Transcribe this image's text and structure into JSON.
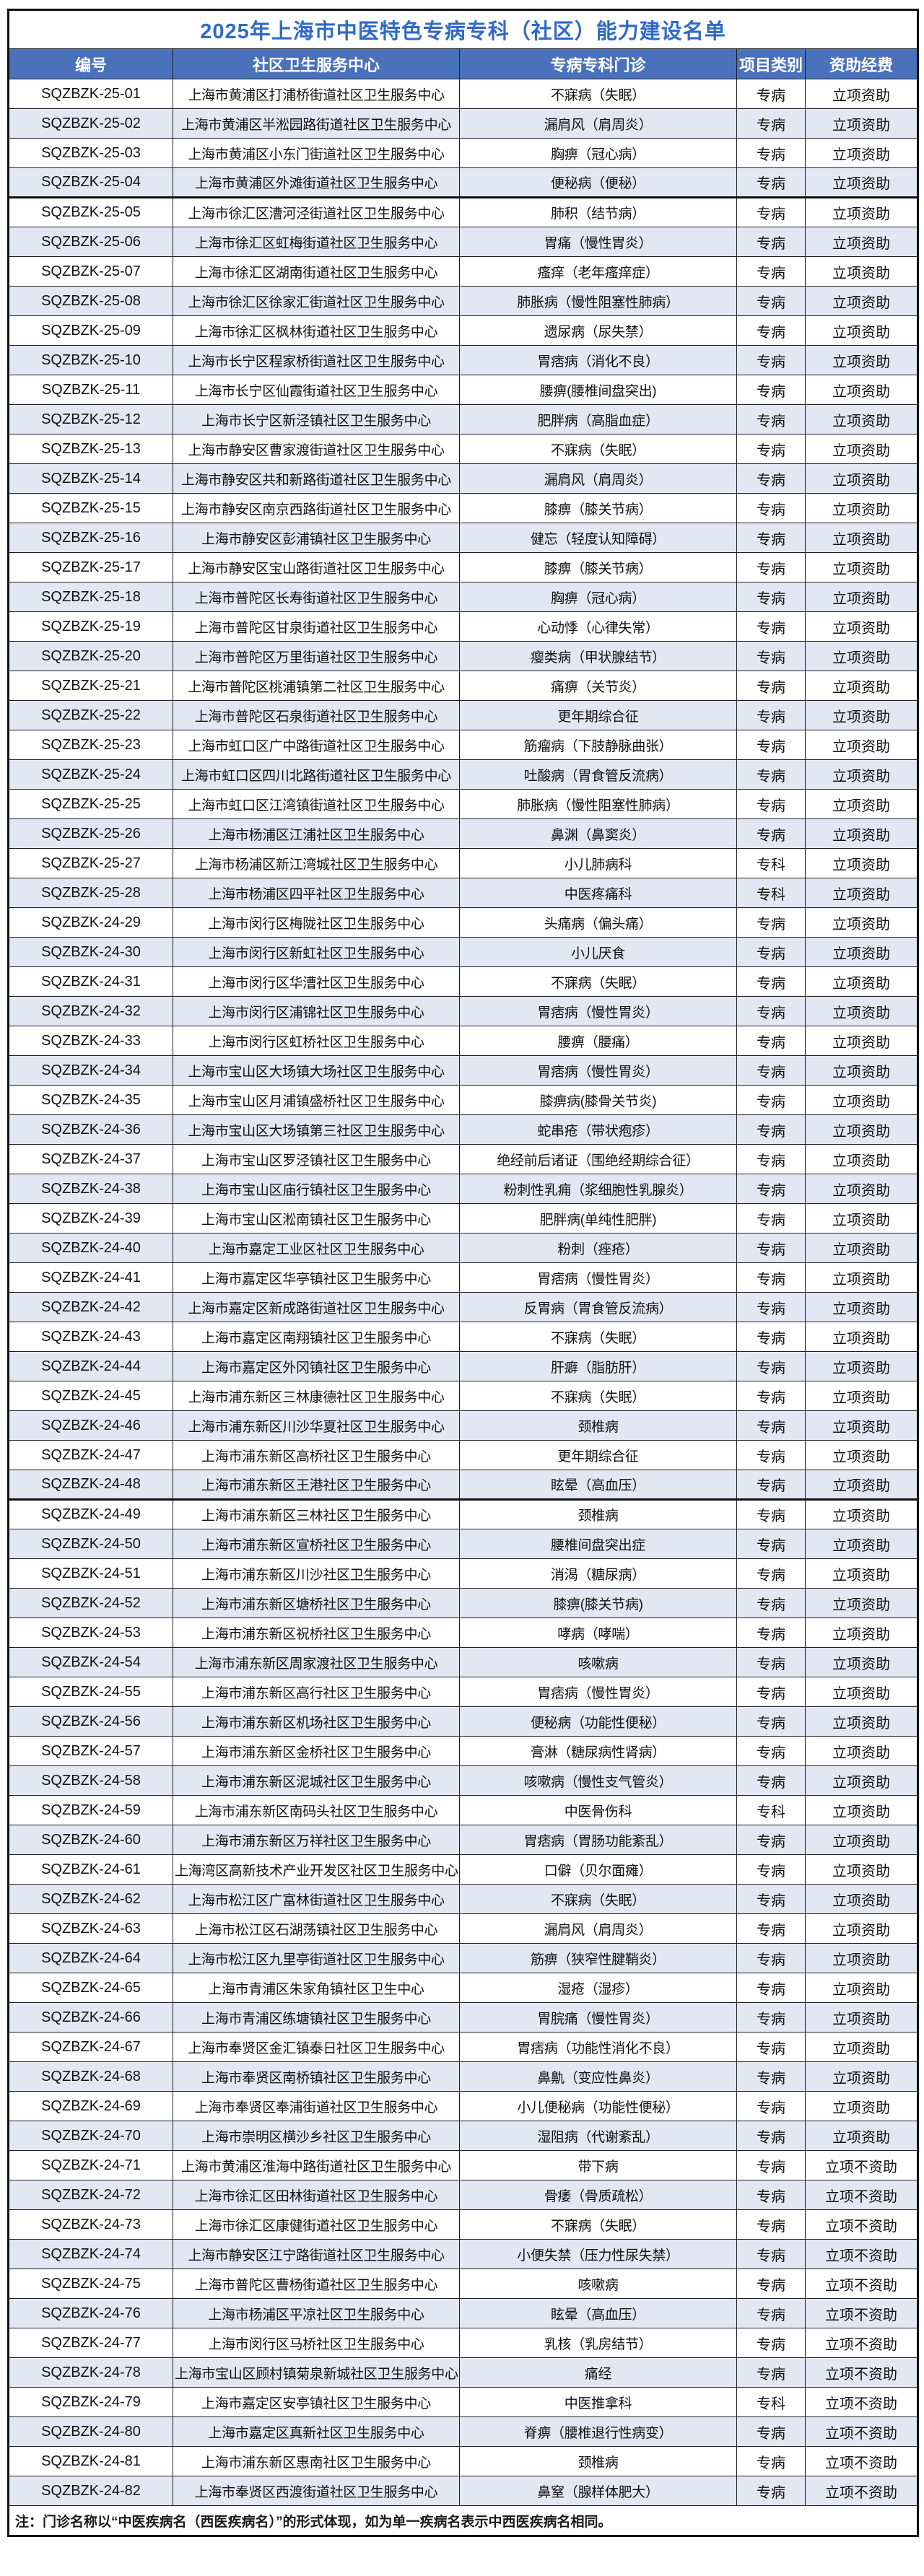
{
  "title": "2025年上海市中医特色专病专科（社区）能力建设名单",
  "note": "注：门诊名称以“中医疾病名（西医疾病名）”的形式体现，如为单一疾病名表示中西医疾病名相同。",
  "colors": {
    "title_text": "#2e6ac8",
    "header_bg": "#4a72ba",
    "header_text": "#ffffff",
    "row_alt_bg": "#e3e7f4",
    "border": "#1f1f1f"
  },
  "table": {
    "columns": [
      "编号",
      "社区卫生服务中心",
      "专病专科门诊",
      "项目类别",
      "资助经费"
    ],
    "rows": [
      {
        "id": "SQZBZK-25-01",
        "center": "上海市黄浦区打浦桥街道社区卫生服务中心",
        "clinic": "不寐病（失眠）",
        "category": "专病",
        "funding": "立项资助"
      },
      {
        "id": "SQZBZK-25-02",
        "center": "上海市黄浦区半淞园路街道社区卫生服务中心",
        "clinic": "漏肩风（肩周炎）",
        "category": "专病",
        "funding": "立项资助"
      },
      {
        "id": "SQZBZK-25-03",
        "center": "上海市黄浦区小东门街道社区卫生服务中心",
        "clinic": "胸痹（冠心病）",
        "category": "专病",
        "funding": "立项资助"
      },
      {
        "id": "SQZBZK-25-04",
        "center": "上海市黄浦区外滩街道社区卫生服务中心",
        "clinic": "便秘病（便秘）",
        "category": "专病",
        "funding": "立项资助"
      },
      {
        "id": "SQZBZK-25-05",
        "center": "上海市徐汇区漕河泾街道社区卫生服务中心",
        "clinic": "肺积（结节病）",
        "category": "专病",
        "funding": "立项资助",
        "thick_top": true
      },
      {
        "id": "SQZBZK-25-06",
        "center": "上海市徐汇区虹梅街道社区卫生服务中心",
        "clinic": "胃痛（慢性胃炎）",
        "category": "专病",
        "funding": "立项资助"
      },
      {
        "id": "SQZBZK-25-07",
        "center": "上海市徐汇区湖南街道社区卫生服务中心",
        "clinic": "瘙痒（老年瘙痒症）",
        "category": "专病",
        "funding": "立项资助"
      },
      {
        "id": "SQZBZK-25-08",
        "center": "上海市徐汇区徐家汇街道社区卫生服务中心",
        "clinic": "肺胀病（慢性阻塞性肺病）",
        "category": "专病",
        "funding": "立项资助"
      },
      {
        "id": "SQZBZK-25-09",
        "center": "上海市徐汇区枫林街道社区卫生服务中心",
        "clinic": "遗尿病（尿失禁）",
        "category": "专病",
        "funding": "立项资助"
      },
      {
        "id": "SQZBZK-25-10",
        "center": "上海市长宁区程家桥街道社区卫生服务中心",
        "clinic": "胃痞病（消化不良）",
        "category": "专病",
        "funding": "立项资助"
      },
      {
        "id": "SQZBZK-25-11",
        "center": "上海市长宁区仙霞街道社区卫生服务中心",
        "clinic": "腰痹(腰椎间盘突出)",
        "category": "专病",
        "funding": "立项资助"
      },
      {
        "id": "SQZBZK-25-12",
        "center": "上海市长宁区新泾镇社区卫生服务中心",
        "clinic": "肥胖病（高脂血症）",
        "category": "专病",
        "funding": "立项资助"
      },
      {
        "id": "SQZBZK-25-13",
        "center": "上海市静安区曹家渡街道社区卫生服务中心",
        "clinic": "不寐病（失眠）",
        "category": "专病",
        "funding": "立项资助"
      },
      {
        "id": "SQZBZK-25-14",
        "center": "上海市静安区共和新路街道社区卫生服务中心",
        "clinic": "漏肩风（肩周炎）",
        "category": "专病",
        "funding": "立项资助"
      },
      {
        "id": "SQZBZK-25-15",
        "center": "上海市静安区南京西路街道社区卫生服务中心",
        "clinic": "膝痹（膝关节病）",
        "category": "专病",
        "funding": "立项资助"
      },
      {
        "id": "SQZBZK-25-16",
        "center": "上海市静安区彭浦镇社区卫生服务中心",
        "clinic": "健忘（轻度认知障碍）",
        "category": "专病",
        "funding": "立项资助"
      },
      {
        "id": "SQZBZK-25-17",
        "center": "上海市静安区宝山路街道社区卫生服务中心",
        "clinic": "膝痹（膝关节病）",
        "category": "专病",
        "funding": "立项资助"
      },
      {
        "id": "SQZBZK-25-18",
        "center": "上海市普陀区长寿街道社区卫生服务中心",
        "clinic": "胸痹（冠心病）",
        "category": "专病",
        "funding": "立项资助"
      },
      {
        "id": "SQZBZK-25-19",
        "center": "上海市普陀区甘泉街道社区卫生服务中心",
        "clinic": "心动悸（心律失常）",
        "category": "专病",
        "funding": "立项资助"
      },
      {
        "id": "SQZBZK-25-20",
        "center": "上海市普陀区万里街道社区卫生服务中心",
        "clinic": "瘿类病（甲状腺结节）",
        "category": "专病",
        "funding": "立项资助"
      },
      {
        "id": "SQZBZK-25-21",
        "center": "上海市普陀区桃浦镇第二社区卫生服务中心",
        "clinic": "痛痹（关节炎）",
        "category": "专病",
        "funding": "立项资助"
      },
      {
        "id": "SQZBZK-25-22",
        "center": "上海市普陀区石泉街道社区卫生服务中心",
        "clinic": "更年期综合征",
        "category": "专病",
        "funding": "立项资助"
      },
      {
        "id": "SQZBZK-25-23",
        "center": "上海市虹口区广中路街道社区卫生服务中心",
        "clinic": "筋瘤病（下肢静脉曲张）",
        "category": "专病",
        "funding": "立项资助"
      },
      {
        "id": "SQZBZK-25-24",
        "center": "上海市虹口区四川北路街道社区卫生服务中心",
        "clinic": "吐酸病（胃食管反流病）",
        "category": "专病",
        "funding": "立项资助"
      },
      {
        "id": "SQZBZK-25-25",
        "center": "上海市虹口区江湾镇街道社区卫生服务中心",
        "clinic": "肺胀病（慢性阻塞性肺病）",
        "category": "专病",
        "funding": "立项资助"
      },
      {
        "id": "SQZBZK-25-26",
        "center": "上海市杨浦区江浦社区卫生服务中心",
        "clinic": "鼻渊（鼻窦炎）",
        "category": "专病",
        "funding": "立项资助"
      },
      {
        "id": "SQZBZK-25-27",
        "center": "上海市杨浦区新江湾城社区卫生服务中心",
        "clinic": "小儿肺病科",
        "category": "专科",
        "funding": "立项资助"
      },
      {
        "id": "SQZBZK-25-28",
        "center": "上海市杨浦区四平社区卫生服务中心",
        "clinic": "中医疼痛科",
        "category": "专科",
        "funding": "立项资助"
      },
      {
        "id": "SQZBZK-24-29",
        "center": "上海市闵行区梅陇社区卫生服务中心",
        "clinic": "头痛病（偏头痛）",
        "category": "专病",
        "funding": "立项资助"
      },
      {
        "id": "SQZBZK-24-30",
        "center": "上海市闵行区新虹社区卫生服务中心",
        "clinic": "小儿厌食",
        "category": "专病",
        "funding": "立项资助"
      },
      {
        "id": "SQZBZK-24-31",
        "center": "上海市闵行区华漕社区卫生服务中心",
        "clinic": "不寐病（失眠）",
        "category": "专病",
        "funding": "立项资助"
      },
      {
        "id": "SQZBZK-24-32",
        "center": "上海市闵行区浦锦社区卫生服务中心",
        "clinic": "胃痞病（慢性胃炎）",
        "category": "专病",
        "funding": "立项资助"
      },
      {
        "id": "SQZBZK-24-33",
        "center": "上海市闵行区虹桥社区卫生服务中心",
        "clinic": "腰痹（腰痛）",
        "category": "专病",
        "funding": "立项资助"
      },
      {
        "id": "SQZBZK-24-34",
        "center": "上海市宝山区大场镇大场社区卫生服务中心",
        "clinic": "胃痞病（慢性胃炎）",
        "category": "专病",
        "funding": "立项资助"
      },
      {
        "id": "SQZBZK-24-35",
        "center": "上海市宝山区月浦镇盛桥社区卫生服务中心",
        "clinic": "膝痹病(膝骨关节炎)",
        "category": "专病",
        "funding": "立项资助"
      },
      {
        "id": "SQZBZK-24-36",
        "center": "上海市宝山区大场镇第三社区卫生服务中心",
        "clinic": "蛇串疮（带状疱疹）",
        "category": "专病",
        "funding": "立项资助"
      },
      {
        "id": "SQZBZK-24-37",
        "center": "上海市宝山区罗泾镇社区卫生服务中心",
        "clinic": "绝经前后诸证（围绝经期综合征）",
        "category": "专病",
        "funding": "立项资助"
      },
      {
        "id": "SQZBZK-24-38",
        "center": "上海市宝山区庙行镇社区卫生服务中心",
        "clinic": "粉刺性乳痈（浆细胞性乳腺炎）",
        "category": "专病",
        "funding": "立项资助"
      },
      {
        "id": "SQZBZK-24-39",
        "center": "上海市宝山区淞南镇社区卫生服务中心",
        "clinic": "肥胖病(单纯性肥胖)",
        "category": "专病",
        "funding": "立项资助"
      },
      {
        "id": "SQZBZK-24-40",
        "center": "上海市嘉定工业区社区卫生服务中心",
        "clinic": "粉刺（痤疮）",
        "category": "专病",
        "funding": "立项资助"
      },
      {
        "id": "SQZBZK-24-41",
        "center": "上海市嘉定区华亭镇社区卫生服务中心",
        "clinic": "胃痞病（慢性胃炎）",
        "category": "专病",
        "funding": "立项资助"
      },
      {
        "id": "SQZBZK-24-42",
        "center": "上海市嘉定区新成路街道社区卫生服务中心",
        "clinic": "反胃病（胃食管反流病）",
        "category": "专病",
        "funding": "立项资助"
      },
      {
        "id": "SQZBZK-24-43",
        "center": "上海市嘉定区南翔镇社区卫生服务中心",
        "clinic": "不寐病（失眠）",
        "category": "专病",
        "funding": "立项资助"
      },
      {
        "id": "SQZBZK-24-44",
        "center": "上海市嘉定区外冈镇社区卫生服务中心",
        "clinic": "肝癖（脂肪肝）",
        "category": "专病",
        "funding": "立项资助"
      },
      {
        "id": "SQZBZK-24-45",
        "center": "上海市浦东新区三林康德社区卫生服务中心",
        "clinic": "不寐病（失眠）",
        "category": "专病",
        "funding": "立项资助"
      },
      {
        "id": "SQZBZK-24-46",
        "center": "上海市浦东新区川沙华夏社区卫生服务中心",
        "clinic": "颈椎病",
        "category": "专病",
        "funding": "立项资助"
      },
      {
        "id": "SQZBZK-24-47",
        "center": "上海市浦东新区高桥社区卫生服务中心",
        "clinic": "更年期综合征",
        "category": "专病",
        "funding": "立项资助"
      },
      {
        "id": "SQZBZK-24-48",
        "center": "上海市浦东新区王港社区卫生服务中心",
        "clinic": "眩晕（高血压）",
        "category": "专病",
        "funding": "立项资助"
      },
      {
        "id": "SQZBZK-24-49",
        "center": "上海市浦东新区三林社区卫生服务中心",
        "clinic": "颈椎病",
        "category": "专病",
        "funding": "立项资助",
        "thick_top": true
      },
      {
        "id": "SQZBZK-24-50",
        "center": "上海市浦东新区宣桥社区卫生服务中心",
        "clinic": "腰椎间盘突出症",
        "category": "专病",
        "funding": "立项资助"
      },
      {
        "id": "SQZBZK-24-51",
        "center": "上海市浦东新区川沙社区卫生服务中心",
        "clinic": "消渴（糖尿病）",
        "category": "专病",
        "funding": "立项资助"
      },
      {
        "id": "SQZBZK-24-52",
        "center": "上海市浦东新区塘桥社区卫生服务中心",
        "clinic": "膝痹(膝关节病)",
        "category": "专病",
        "funding": "立项资助"
      },
      {
        "id": "SQZBZK-24-53",
        "center": "上海市浦东新区祝桥社区卫生服务中心",
        "clinic": "哮病（哮喘）",
        "category": "专病",
        "funding": "立项资助"
      },
      {
        "id": "SQZBZK-24-54",
        "center": "上海市浦东新区周家渡社区卫生服务中心",
        "clinic": "咳嗽病",
        "category": "专病",
        "funding": "立项资助"
      },
      {
        "id": "SQZBZK-24-55",
        "center": "上海市浦东新区高行社区卫生服务中心",
        "clinic": "胃痞病（慢性胃炎）",
        "category": "专病",
        "funding": "立项资助"
      },
      {
        "id": "SQZBZK-24-56",
        "center": "上海市浦东新区机场社区卫生服务中心",
        "clinic": "便秘病（功能性便秘）",
        "category": "专病",
        "funding": "立项资助"
      },
      {
        "id": "SQZBZK-24-57",
        "center": "上海市浦东新区金桥社区卫生服务中心",
        "clinic": "膏淋（糖尿病性肾病）",
        "category": "专病",
        "funding": "立项资助"
      },
      {
        "id": "SQZBZK-24-58",
        "center": "上海市浦东新区泥城社区卫生服务中心",
        "clinic": "咳嗽病（慢性支气管炎）",
        "category": "专病",
        "funding": "立项资助"
      },
      {
        "id": "SQZBZK-24-59",
        "center": "上海市浦东新区南码头社区卫生服务中心",
        "clinic": "中医骨伤科",
        "category": "专科",
        "funding": "立项资助"
      },
      {
        "id": "SQZBZK-24-60",
        "center": "上海市浦东新区万祥社区卫生服务中心",
        "clinic": "胃痞病（胃肠功能紊乱）",
        "category": "专病",
        "funding": "立项资助"
      },
      {
        "id": "SQZBZK-24-61",
        "center": "上海湾区高新技术产业开发区社区卫生服务中心",
        "clinic": "口僻（贝尔面瘫）",
        "category": "专病",
        "funding": "立项资助"
      },
      {
        "id": "SQZBZK-24-62",
        "center": "上海市松江区广富林街道社区卫生服务中心",
        "clinic": "不寐病（失眠）",
        "category": "专病",
        "funding": "立项资助"
      },
      {
        "id": "SQZBZK-24-63",
        "center": "上海市松江区石湖荡镇社区卫生服务中心",
        "clinic": "漏肩风（肩周炎）",
        "category": "专病",
        "funding": "立项资助"
      },
      {
        "id": "SQZBZK-24-64",
        "center": "上海市松江区九里亭街道社区卫生服务中心",
        "clinic": "筋痹（狭窄性腱鞘炎）",
        "category": "专病",
        "funding": "立项资助"
      },
      {
        "id": "SQZBZK-24-65",
        "center": "上海市青浦区朱家角镇社区卫生中心",
        "clinic": "湿疮（湿疹）",
        "category": "专病",
        "funding": "立项资助"
      },
      {
        "id": "SQZBZK-24-66",
        "center": "上海市青浦区练塘镇社区卫生服务中心",
        "clinic": "胃脘痛（慢性胃炎）",
        "category": "专病",
        "funding": "立项资助"
      },
      {
        "id": "SQZBZK-24-67",
        "center": "上海市奉贤区金汇镇泰日社区卫生服务中心",
        "clinic": "胃痞病（功能性消化不良）",
        "category": "专病",
        "funding": "立项资助"
      },
      {
        "id": "SQZBZK-24-68",
        "center": "上海市奉贤区南桥镇社区卫生服务中心",
        "clinic": "鼻鼽（变应性鼻炎）",
        "category": "专病",
        "funding": "立项资助"
      },
      {
        "id": "SQZBZK-24-69",
        "center": "上海市奉贤区奉浦街道社区卫生服务中心",
        "clinic": "小儿便秘病（功能性便秘）",
        "category": "专病",
        "funding": "立项资助"
      },
      {
        "id": "SQZBZK-24-70",
        "center": "上海市崇明区横沙乡社区卫生服务中心",
        "clinic": "湿阻病（代谢紊乱）",
        "category": "专病",
        "funding": "立项资助"
      },
      {
        "id": "SQZBZK-24-71",
        "center": "上海市黄浦区淮海中路街道社区卫生服务中心",
        "clinic": "带下病",
        "category": "专病",
        "funding": "立项不资助"
      },
      {
        "id": "SQZBZK-24-72",
        "center": "上海市徐汇区田林街道社区卫生服务中心",
        "clinic": "骨痿（骨质疏松）",
        "category": "专病",
        "funding": "立项不资助"
      },
      {
        "id": "SQZBZK-24-73",
        "center": "上海市徐汇区康健街道社区卫生服务中心",
        "clinic": "不寐病（失眠）",
        "category": "专病",
        "funding": "立项不资助"
      },
      {
        "id": "SQZBZK-24-74",
        "center": "上海市静安区江宁路街道社区卫生服务中心",
        "clinic": "小便失禁（压力性尿失禁）",
        "category": "专病",
        "funding": "立项不资助"
      },
      {
        "id": "SQZBZK-24-75",
        "center": "上海市普陀区曹杨街道社区卫生服务中心",
        "clinic": "咳嗽病",
        "category": "专病",
        "funding": "立项不资助"
      },
      {
        "id": "SQZBZK-24-76",
        "center": "上海市杨浦区平凉社区卫生服务中心",
        "clinic": "眩晕（高血压）",
        "category": "专病",
        "funding": "立项不资助"
      },
      {
        "id": "SQZBZK-24-77",
        "center": "上海市闵行区马桥社区卫生服务中心",
        "clinic": "乳核（乳房结节）",
        "category": "专病",
        "funding": "立项不资助"
      },
      {
        "id": "SQZBZK-24-78",
        "center": "上海市宝山区顾村镇菊泉新城社区卫生服务中心",
        "clinic": "痛经",
        "category": "专病",
        "funding": "立项不资助"
      },
      {
        "id": "SQZBZK-24-79",
        "center": "上海市嘉定区安亭镇社区卫生服务中心",
        "clinic": "中医推拿科",
        "category": "专科",
        "funding": "立项不资助"
      },
      {
        "id": "SQZBZK-24-80",
        "center": "上海市嘉定区真新社区卫生服务中心",
        "clinic": "脊痹（腰椎退行性病变）",
        "category": "专病",
        "funding": "立项不资助"
      },
      {
        "id": "SQZBZK-24-81",
        "center": "上海市浦东新区惠南社区卫生服务中心",
        "clinic": "颈椎病",
        "category": "专病",
        "funding": "立项不资助"
      },
      {
        "id": "SQZBZK-24-82",
        "center": "上海市奉贤区西渡街道社区卫生服务中心",
        "clinic": "鼻窒（腺样体肥大）",
        "category": "专病",
        "funding": "立项不资助"
      }
    ]
  }
}
